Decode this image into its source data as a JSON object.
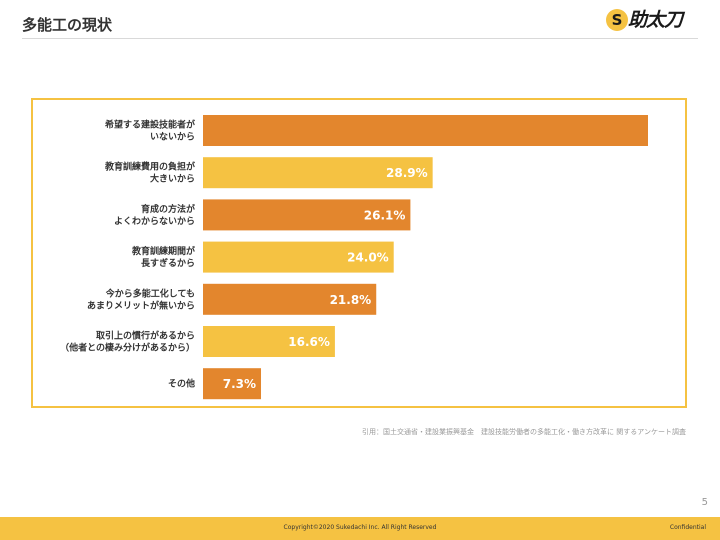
{
  "header": {
    "title": "多能工の現状",
    "logo_mark": "S",
    "logo_text": "助太刀"
  },
  "colors": {
    "accent_orange": "#e3862d",
    "accent_yellow": "#f5c242",
    "frame": "#f5c242",
    "text_dark": "#333333"
  },
  "chart_data": {
    "type": "bar",
    "orientation": "horizontal",
    "categories": [
      [
        "希望する建設技能者が",
        "いないから"
      ],
      [
        "教育訓練費用の負担が",
        "大きいから"
      ],
      [
        "育成の方法が",
        "よくわからないから"
      ],
      [
        "教育訓練期間が",
        "長すぎるから"
      ],
      [
        "今から多能工化しても",
        "あまりメリットが無いから"
      ],
      [
        "取引上の慣行があるから",
        "（他者との棲み分けがあるから）"
      ],
      [
        "その他"
      ]
    ],
    "values": [
      56.0,
      28.9,
      26.1,
      24.0,
      21.8,
      16.6,
      7.3
    ],
    "value_labels": [
      "",
      "28.9%",
      "26.1%",
      "24.0%",
      "21.8%",
      "16.6%",
      "7.3%"
    ],
    "unit": "%",
    "xlim": [
      0,
      57
    ],
    "bar_colors": [
      "#e3862d",
      "#f5c242",
      "#e3862d",
      "#f5c242",
      "#e3862d",
      "#f5c242",
      "#e3862d"
    ],
    "grid": false,
    "legend": "none"
  },
  "source_note": "引用：国土交通省・建設業振興基金　建設技能労働者の多能工化・働き方改革に 関するアンケート調査",
  "page_number": "5",
  "footer": {
    "copyright": "Copyright©2020 Sukedachi Inc. All Right Reserved",
    "confidential": "Confidential"
  }
}
